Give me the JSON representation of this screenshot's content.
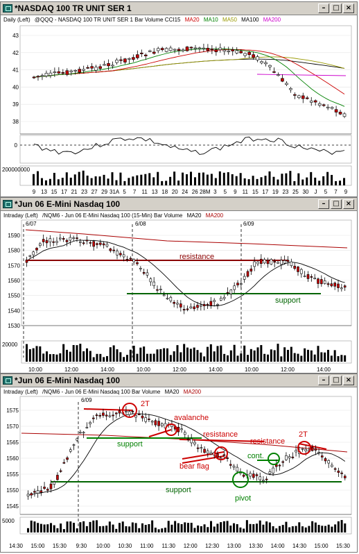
{
  "panels": [
    {
      "id": "daily",
      "title": "*NASDAQ 100 TR UNIT SER 1",
      "legend": [
        "Daily (Left)",
        "@QQQ - NASDAQ 100 TR UNIT SER 1 Bar Volume CCI15",
        "MA20",
        "MA10",
        "MA50",
        "MA100",
        "MA200"
      ],
      "legend_colors": [
        "#000000",
        "#000000",
        "#cc0000",
        "#008000",
        "#999900",
        "#000000",
        "#cc00cc"
      ],
      "price_axis": [
        "43",
        "42",
        "41",
        "40",
        "39",
        "38"
      ],
      "cci_axis": [
        "0"
      ],
      "volume_axis": [
        "200000000"
      ],
      "time_axis": [
        "9",
        "13",
        "15",
        "17",
        "21",
        "23",
        "27",
        "29",
        "31A",
        "5",
        "7",
        "11",
        "13",
        "18",
        "20",
        "24",
        "26",
        "28M",
        "3",
        "5",
        "9",
        "11",
        "15",
        "17",
        "19",
        "23",
        "25",
        "30",
        "J",
        "5",
        "7",
        "9"
      ]
    },
    {
      "id": "intraday15",
      "title": "*Jun 06 E-Mini Nasdaq 100",
      "legend": [
        "Intraday (Left)",
        "/NQM6 - Jun 06 E-Mini Nasdaq 100 (15-Min) Bar Volume",
        "MA20",
        "MA200"
      ],
      "legend_colors": [
        "#000000",
        "#000000",
        "#000000",
        "#aa0000"
      ],
      "price_axis": [
        "1590",
        "1580",
        "1570",
        "1560",
        "1550",
        "1540",
        "1530"
      ],
      "volume_axis": [
        "20000"
      ],
      "date_labels": [
        "6/07",
        "6/08",
        "6/09"
      ],
      "time_axis": [
        "10:00",
        "12:00",
        "14:00",
        "10:00",
        "12:00",
        "14:00",
        "10:00",
        "12:00",
        "14:00"
      ],
      "annotations": {
        "resistance": "resistance",
        "support": "support"
      }
    },
    {
      "id": "intraday5",
      "title": "*Jun 06 E-Mini Nasdaq 100",
      "legend": [
        "Intraday (Left)",
        "/NQM6 - Jun 06 E-Mini Nasdaq 100 Bar Volume",
        "MA20",
        "MA200"
      ],
      "legend_colors": [
        "#000000",
        "#000000",
        "#000000",
        "#aa0000"
      ],
      "price_axis": [
        "1575",
        "1570",
        "1565",
        "1560",
        "1555",
        "1550",
        "1545"
      ],
      "volume_axis": [
        "5000"
      ],
      "date_labels": [
        "6/09"
      ],
      "time_axis": [
        "14:30",
        "15:00",
        "15:30",
        "9:30",
        "10:00",
        "10:30",
        "11:00",
        "11:30",
        "12:00",
        "12:30",
        "13:00",
        "13:30",
        "14:00",
        "14:30",
        "15:00",
        "15:30"
      ],
      "annotations": {
        "t2a": "2T",
        "avalanche": "avalanche",
        "resistance1": "resistance",
        "resistance2": "resistance",
        "t2b": "2T",
        "support1": "support",
        "bear_flag": "bear flag",
        "cont": "cont.",
        "support2": "support",
        "pivot": "pivot"
      }
    }
  ]
}
